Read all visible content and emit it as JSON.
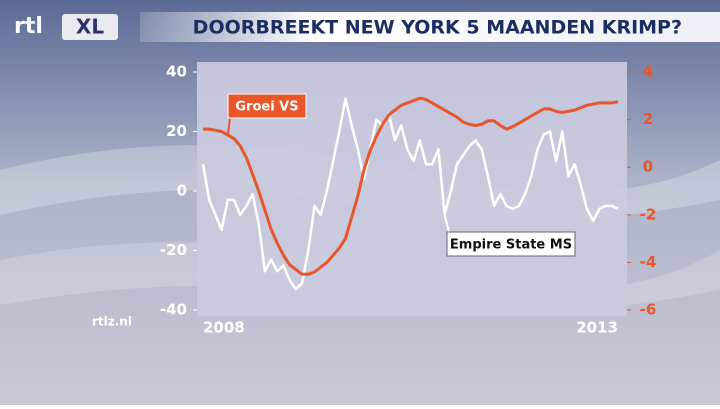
{
  "brand": "rtl",
  "brand_badge": "XL",
  "source": "rtlz.nl",
  "chart_data": {
    "type": "line",
    "title": "DOORBREEKT NEW YORK 5 MAANDEN KRIMP?",
    "categories": [
      "2008",
      null,
      null,
      null,
      null,
      null,
      null,
      null,
      null,
      null,
      null,
      null,
      null,
      null,
      null,
      null,
      null,
      null,
      null,
      null,
      null,
      null,
      null,
      null,
      null,
      null,
      null,
      null,
      null,
      null,
      null,
      null,
      null,
      null,
      null,
      null,
      null,
      null,
      null,
      null,
      null,
      null,
      null,
      null,
      null,
      null,
      null,
      null,
      null,
      null,
      null,
      null,
      null,
      null,
      null,
      null,
      null,
      null,
      null,
      null,
      null,
      null,
      null,
      null,
      null,
      null,
      null,
      "2013"
    ],
    "ylim": [
      -40,
      40
    ],
    "yticks": [
      -40,
      -20,
      0,
      20,
      40
    ],
    "y2lim": [
      -6,
      4
    ],
    "y2ticks": [
      -6,
      -4,
      -2,
      0,
      2,
      4
    ],
    "series": [
      {
        "name": "Empire State MS",
        "color": "#ffffff",
        "axis": "y",
        "values": [
          9,
          -3,
          -8,
          -13,
          -3,
          -3,
          -8,
          -5,
          -1,
          -11,
          -27,
          -23,
          -27,
          -25,
          -30,
          -33,
          -31,
          -20,
          -5,
          -8,
          0,
          10,
          20,
          31,
          22,
          14,
          4,
          14,
          24,
          22,
          26,
          17,
          22,
          14,
          10,
          17,
          9,
          9,
          14,
          -8,
          0,
          9,
          12,
          15,
          17,
          14,
          5,
          -5,
          -1,
          -5,
          -6,
          -5,
          -1,
          5,
          14,
          19,
          20,
          10,
          20,
          5,
          9,
          2,
          -6,
          -10,
          -6,
          -5,
          -5,
          -6
        ]
      },
      {
        "name": "Groei VS",
        "color": "#e8562a",
        "axis": "y2",
        "values": [
          1.6,
          1.6,
          1.55,
          1.5,
          1.35,
          1.2,
          0.9,
          0.4,
          -0.3,
          -1.0,
          -1.8,
          -2.6,
          -3.2,
          -3.7,
          -4.1,
          -4.3,
          -4.5,
          -4.5,
          -4.4,
          -4.2,
          -4.0,
          -3.7,
          -3.4,
          -3.0,
          -2.1,
          -1.2,
          -0.1,
          0.7,
          1.3,
          1.8,
          2.2,
          2.4,
          2.6,
          2.7,
          2.8,
          2.9,
          2.85,
          2.7,
          2.55,
          2.4,
          2.25,
          2.1,
          1.9,
          1.8,
          1.75,
          1.8,
          1.95,
          1.95,
          1.75,
          1.6,
          1.7,
          1.85,
          2.0,
          2.15,
          2.3,
          2.45,
          2.45,
          2.35,
          2.3,
          2.35,
          2.4,
          2.5,
          2.6,
          2.65,
          2.7,
          2.7,
          2.7,
          2.75
        ]
      }
    ]
  }
}
